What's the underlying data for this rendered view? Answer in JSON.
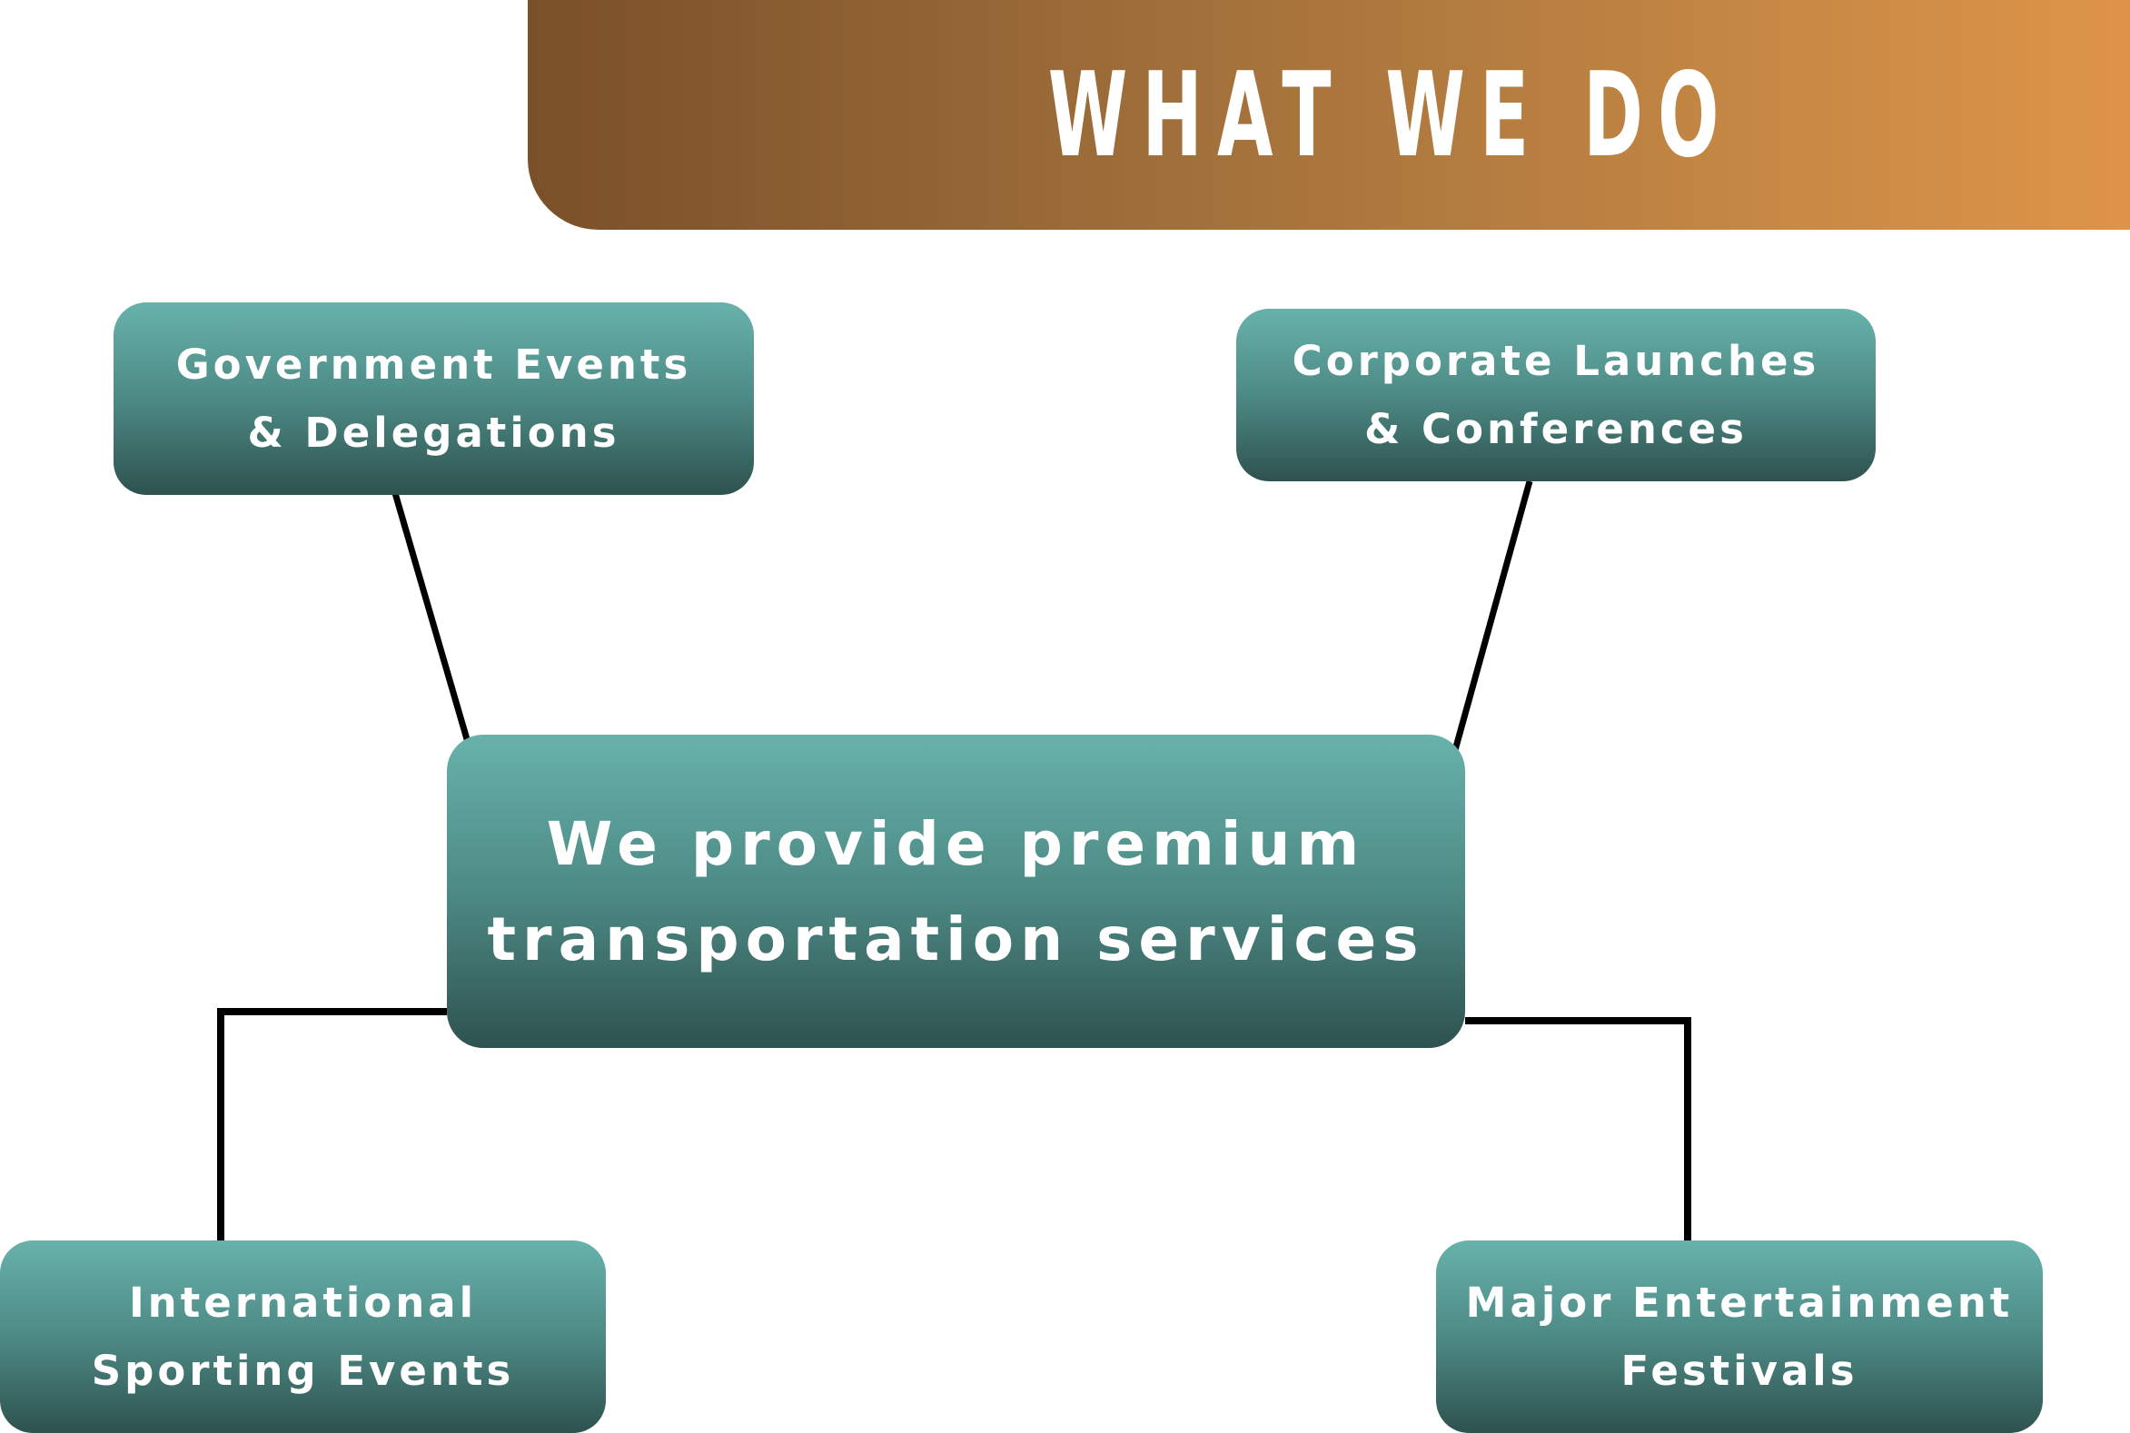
{
  "banner": {
    "title": "WHAT WE DO",
    "gradient_start": "#7a502a",
    "gradient_end": "#de9448"
  },
  "diagram": {
    "center": {
      "text": "We provide premium\ntransportation services"
    },
    "nodes": [
      {
        "id": "government",
        "text": "Government Events\n& Delegations"
      },
      {
        "id": "corporate",
        "text": "Corporate Launches\n& Conferences"
      },
      {
        "id": "sporting",
        "text": "International\nSporting Events"
      },
      {
        "id": "entertainment",
        "text": "Major Entertainment\nFestivals"
      }
    ],
    "edges": [
      {
        "from": "center",
        "to": "government"
      },
      {
        "from": "center",
        "to": "corporate"
      },
      {
        "from": "center",
        "to": "sporting"
      },
      {
        "from": "center",
        "to": "entertainment"
      }
    ],
    "box_color_top": "#68b2ac",
    "box_color_bottom": "#2e524f",
    "line_color": "#000000"
  }
}
